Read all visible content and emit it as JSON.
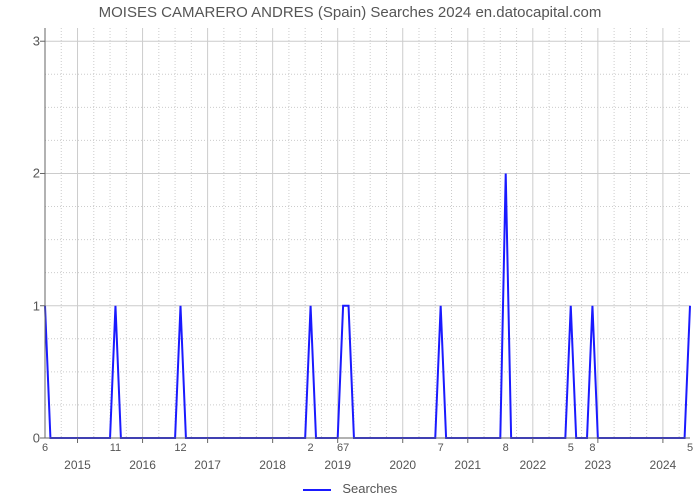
{
  "chart": {
    "type": "line",
    "title": "MOISES CAMARERO ANDRES (Spain) Searches 2024 en.datocapital.com",
    "title_fontsize": 15,
    "title_color": "#555555",
    "background_color": "#ffffff",
    "line_color": "#1a1aff",
    "line_width": 2,
    "border_color": "#666666",
    "grid_color": "#cccccc",
    "grid_dash": "1,2",
    "y": {
      "lim": [
        0,
        3.1
      ],
      "ticks": [
        0,
        1,
        2,
        3
      ],
      "label_fontsize": 13
    },
    "x": {
      "lim": [
        0,
        119
      ],
      "major_years": [
        "2015",
        "2016",
        "2017",
        "2018",
        "2019",
        "2020",
        "2021",
        "2022",
        "2023",
        "2024"
      ],
      "major_positions": [
        6,
        18,
        30,
        42,
        54,
        66,
        78,
        90,
        102,
        114
      ],
      "minor_labels": [
        "6",
        "11",
        "12",
        "2",
        "67",
        "7",
        "8",
        "5",
        "8",
        "5"
      ],
      "minor_positions": [
        0,
        13,
        25,
        49,
        55,
        73,
        85,
        97,
        101,
        119
      ],
      "label_fontsize": 12
    },
    "series": {
      "name": "Searches",
      "x": [
        0,
        1,
        2,
        12,
        13,
        14,
        24,
        25,
        26,
        48,
        49,
        50,
        54,
        55,
        56,
        57,
        72,
        73,
        74,
        84,
        85,
        86,
        87,
        96,
        97,
        98,
        100,
        101,
        102,
        118,
        119
      ],
      "y": [
        1,
        0,
        0,
        0,
        1,
        0,
        0,
        1,
        0,
        0,
        1,
        0,
        0,
        1,
        1,
        0,
        0,
        1,
        0,
        0,
        2,
        0,
        0,
        0,
        1,
        0,
        0,
        1,
        0,
        0,
        1
      ]
    },
    "legend": {
      "label": "Searches"
    }
  }
}
